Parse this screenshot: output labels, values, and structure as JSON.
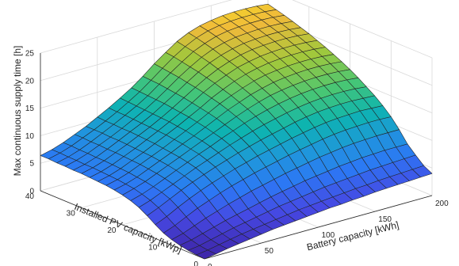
{
  "chart_data": {
    "type": "surface",
    "title": "",
    "xlabel": "Battery capacity [kWh]",
    "ylabel": "Installed PV capacity [kWp]",
    "zlabel": "Max continuous supply time [h]",
    "xlim": [
      0,
      200
    ],
    "ylim": [
      0,
      40
    ],
    "zlim": [
      0,
      25
    ],
    "x_ticks": [
      "0",
      "50",
      "100",
      "150",
      "200"
    ],
    "y_ticks": [
      "0",
      "10",
      "20",
      "30",
      "40"
    ],
    "z_ticks": [
      "0",
      "5",
      "10",
      "15",
      "20",
      "25"
    ],
    "grid": true,
    "colormap": "parula",
    "x": [
      0,
      10,
      20,
      30,
      40,
      50,
      60,
      70,
      80,
      90,
      100,
      110,
      120,
      130,
      140,
      150,
      160,
      170,
      180,
      190,
      200
    ],
    "y": [
      0,
      2,
      4,
      6,
      8,
      10,
      12,
      14,
      16,
      18,
      20,
      22,
      24,
      26,
      28,
      30,
      32,
      34,
      36,
      38,
      40
    ],
    "z": [
      [
        0.0,
        0.3,
        0.7,
        1.0,
        1.3,
        1.6,
        1.9,
        2.1,
        2.3,
        2.5,
        2.7,
        2.9,
        3.0,
        3.2,
        3.3,
        3.5,
        3.6,
        3.7,
        3.8,
        3.9,
        4.0
      ],
      [
        0.1,
        0.4,
        0.8,
        1.2,
        1.6,
        1.9,
        2.2,
        2.5,
        2.8,
        3.1,
        3.3,
        3.5,
        3.7,
        3.9,
        4.1,
        4.2,
        4.4,
        4.5,
        4.6,
        4.7,
        4.8
      ],
      [
        0.3,
        0.6,
        1.1,
        1.6,
        2.1,
        2.5,
        2.9,
        3.3,
        3.7,
        4.0,
        4.3,
        4.6,
        4.9,
        5.1,
        5.3,
        5.5,
        5.7,
        5.8,
        5.9,
        6.0,
        6.1
      ],
      [
        0.6,
        1.0,
        1.6,
        2.2,
        2.8,
        3.3,
        3.8,
        4.3,
        4.8,
        5.2,
        5.6,
        6.0,
        6.3,
        6.6,
        6.9,
        7.1,
        7.3,
        7.4,
        7.5,
        7.5,
        7.5
      ],
      [
        1.0,
        1.6,
        2.4,
        3.2,
        3.9,
        4.6,
        5.2,
        5.8,
        6.3,
        6.8,
        7.3,
        7.7,
        8.1,
        8.5,
        8.8,
        9.1,
        9.3,
        9.4,
        9.5,
        9.5,
        9.5
      ],
      [
        1.6,
        2.4,
        3.4,
        4.4,
        5.2,
        6.0,
        6.7,
        7.3,
        7.9,
        8.4,
        8.9,
        9.4,
        9.8,
        10.2,
        10.6,
        10.9,
        11.1,
        11.2,
        11.3,
        11.3,
        11.2
      ],
      [
        2.5,
        3.4,
        4.5,
        5.5,
        6.4,
        7.2,
        7.9,
        8.6,
        9.2,
        9.8,
        10.3,
        10.8,
        11.3,
        11.7,
        12.1,
        12.4,
        12.6,
        12.7,
        12.8,
        12.7,
        12.6
      ],
      [
        3.5,
        4.4,
        5.4,
        6.4,
        7.3,
        8.1,
        8.9,
        9.6,
        10.3,
        10.9,
        11.5,
        12.0,
        12.5,
        13.0,
        13.4,
        13.7,
        13.9,
        14.0,
        14.0,
        13.9,
        13.8
      ],
      [
        4.4,
        5.1,
        6.0,
        6.9,
        7.8,
        8.7,
        9.5,
        10.3,
        11.1,
        11.8,
        12.5,
        13.1,
        13.6,
        14.1,
        14.5,
        14.8,
        15.0,
        15.1,
        15.1,
        15.0,
        14.8
      ],
      [
        5.0,
        5.6,
        6.4,
        7.3,
        8.2,
        9.1,
        10.0,
        10.8,
        11.7,
        12.5,
        13.3,
        14.0,
        14.6,
        15.1,
        15.5,
        15.8,
        16.0,
        16.1,
        16.1,
        16.0,
        15.8
      ],
      [
        5.4,
        6.0,
        6.7,
        7.6,
        8.5,
        9.4,
        10.3,
        11.2,
        12.1,
        13.0,
        13.9,
        14.7,
        15.4,
        16.0,
        16.4,
        16.7,
        16.9,
        17.0,
        17.0,
        16.9,
        16.7
      ],
      [
        5.7,
        6.2,
        6.9,
        7.8,
        8.7,
        9.6,
        10.6,
        11.5,
        12.5,
        13.5,
        14.5,
        15.3,
        16.1,
        16.7,
        17.2,
        17.5,
        17.7,
        17.8,
        17.8,
        17.7,
        17.5
      ],
      [
        5.9,
        6.4,
        7.1,
        8.0,
        8.9,
        9.8,
        10.8,
        11.8,
        12.8,
        13.9,
        15.0,
        15.9,
        16.7,
        17.4,
        17.9,
        18.2,
        18.4,
        18.5,
        18.5,
        18.4,
        18.2
      ],
      [
        6.0,
        6.5,
        7.2,
        8.1,
        9.0,
        10.0,
        11.0,
        12.0,
        13.1,
        14.2,
        15.4,
        16.4,
        17.3,
        18.0,
        18.5,
        18.9,
        19.1,
        19.2,
        19.2,
        19.1,
        18.9
      ],
      [
        6.1,
        6.6,
        7.3,
        8.2,
        9.1,
        10.1,
        11.1,
        12.2,
        13.3,
        14.5,
        15.8,
        16.9,
        17.8,
        18.6,
        19.1,
        19.5,
        19.7,
        19.8,
        19.8,
        19.7,
        19.5
      ],
      [
        6.2,
        6.7,
        7.4,
        8.3,
        9.2,
        10.2,
        11.2,
        12.3,
        13.5,
        14.8,
        16.1,
        17.3,
        18.3,
        19.1,
        19.7,
        20.1,
        20.3,
        20.4,
        20.4,
        20.3,
        20.1
      ],
      [
        6.2,
        6.7,
        7.4,
        8.3,
        9.3,
        10.3,
        11.3,
        12.4,
        13.7,
        15.0,
        16.4,
        17.7,
        18.8,
        19.6,
        20.2,
        20.6,
        20.8,
        20.9,
        20.9,
        20.8,
        20.6
      ],
      [
        6.3,
        6.8,
        7.5,
        8.4,
        9.3,
        10.3,
        11.4,
        12.5,
        13.8,
        15.2,
        16.7,
        18.0,
        19.2,
        20.1,
        20.7,
        21.1,
        21.3,
        21.4,
        21.4,
        21.3,
        21.1
      ],
      [
        6.3,
        6.8,
        7.5,
        8.4,
        9.4,
        10.4,
        11.5,
        12.6,
        13.9,
        15.4,
        16.9,
        18.3,
        19.6,
        20.5,
        21.2,
        21.6,
        21.8,
        21.9,
        21.9,
        21.8,
        21.6
      ],
      [
        6.4,
        6.9,
        7.6,
        8.5,
        9.4,
        10.4,
        11.5,
        12.7,
        14.0,
        15.5,
        17.1,
        18.6,
        19.9,
        20.9,
        21.6,
        22.0,
        22.2,
        22.3,
        22.3,
        22.2,
        22.0
      ],
      [
        6.4,
        6.9,
        7.6,
        8.5,
        9.4,
        10.5,
        11.6,
        12.8,
        14.1,
        15.6,
        17.3,
        18.8,
        20.2,
        21.2,
        21.9,
        22.3,
        22.6,
        22.7,
        22.7,
        22.6,
        22.4
      ]
    ]
  }
}
